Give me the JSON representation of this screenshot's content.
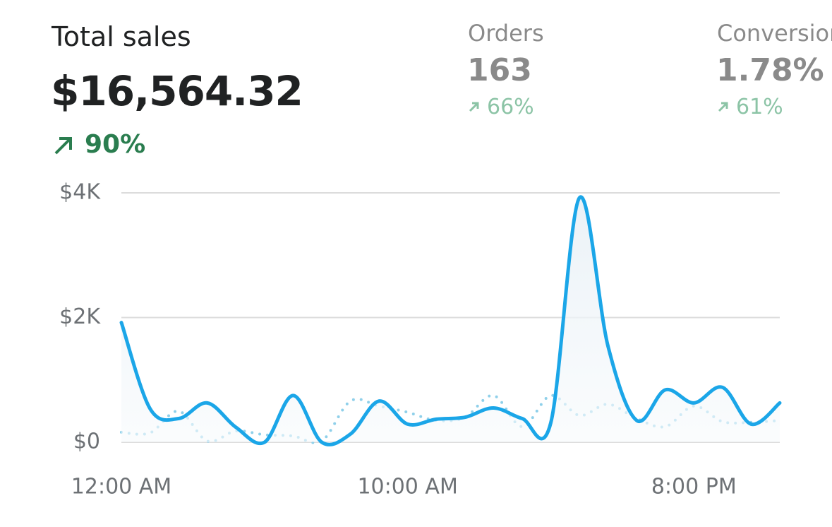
{
  "header": {
    "title": "Total sales",
    "value": "$16,564.32",
    "change": "90%"
  },
  "metrics": [
    {
      "label": "Orders",
      "value": "163",
      "change": "66%"
    },
    {
      "label": "Conversion rate",
      "value": "1.78%",
      "change": "61%"
    }
  ],
  "chart_data": {
    "type": "line",
    "x": [
      "12:00 AM",
      null,
      null,
      null,
      null,
      null,
      null,
      null,
      null,
      null,
      "10:00 AM",
      null,
      null,
      null,
      null,
      null,
      null,
      null,
      null,
      null,
      "8:00 PM",
      null,
      null,
      null
    ],
    "series": [
      {
        "color": "#1ba6e8",
        "style": "solid",
        "fill_area": true,
        "values": [
          1920,
          540,
          380,
          630,
          240,
          0,
          750,
          0,
          130,
          660,
          290,
          370,
          400,
          550,
          380,
          310,
          3920,
          1540,
          350,
          840,
          630,
          880,
          290,
          630
        ]
      },
      {
        "color": "#8fd0ea",
        "style": "dotted",
        "values": [
          160,
          150,
          500,
          20,
          180,
          120,
          100,
          20,
          660,
          580,
          480,
          350,
          400,
          750,
          250,
          750,
          430,
          610,
          380,
          250,
          580,
          330,
          320,
          350
        ]
      }
    ],
    "ylim": [
      0,
      4000
    ],
    "yticks": [
      {
        "value": 0,
        "label": "$0"
      },
      {
        "value": 2000,
        "label": "$2K"
      },
      {
        "value": 4000,
        "label": "$4K"
      }
    ],
    "grid": true
  }
}
